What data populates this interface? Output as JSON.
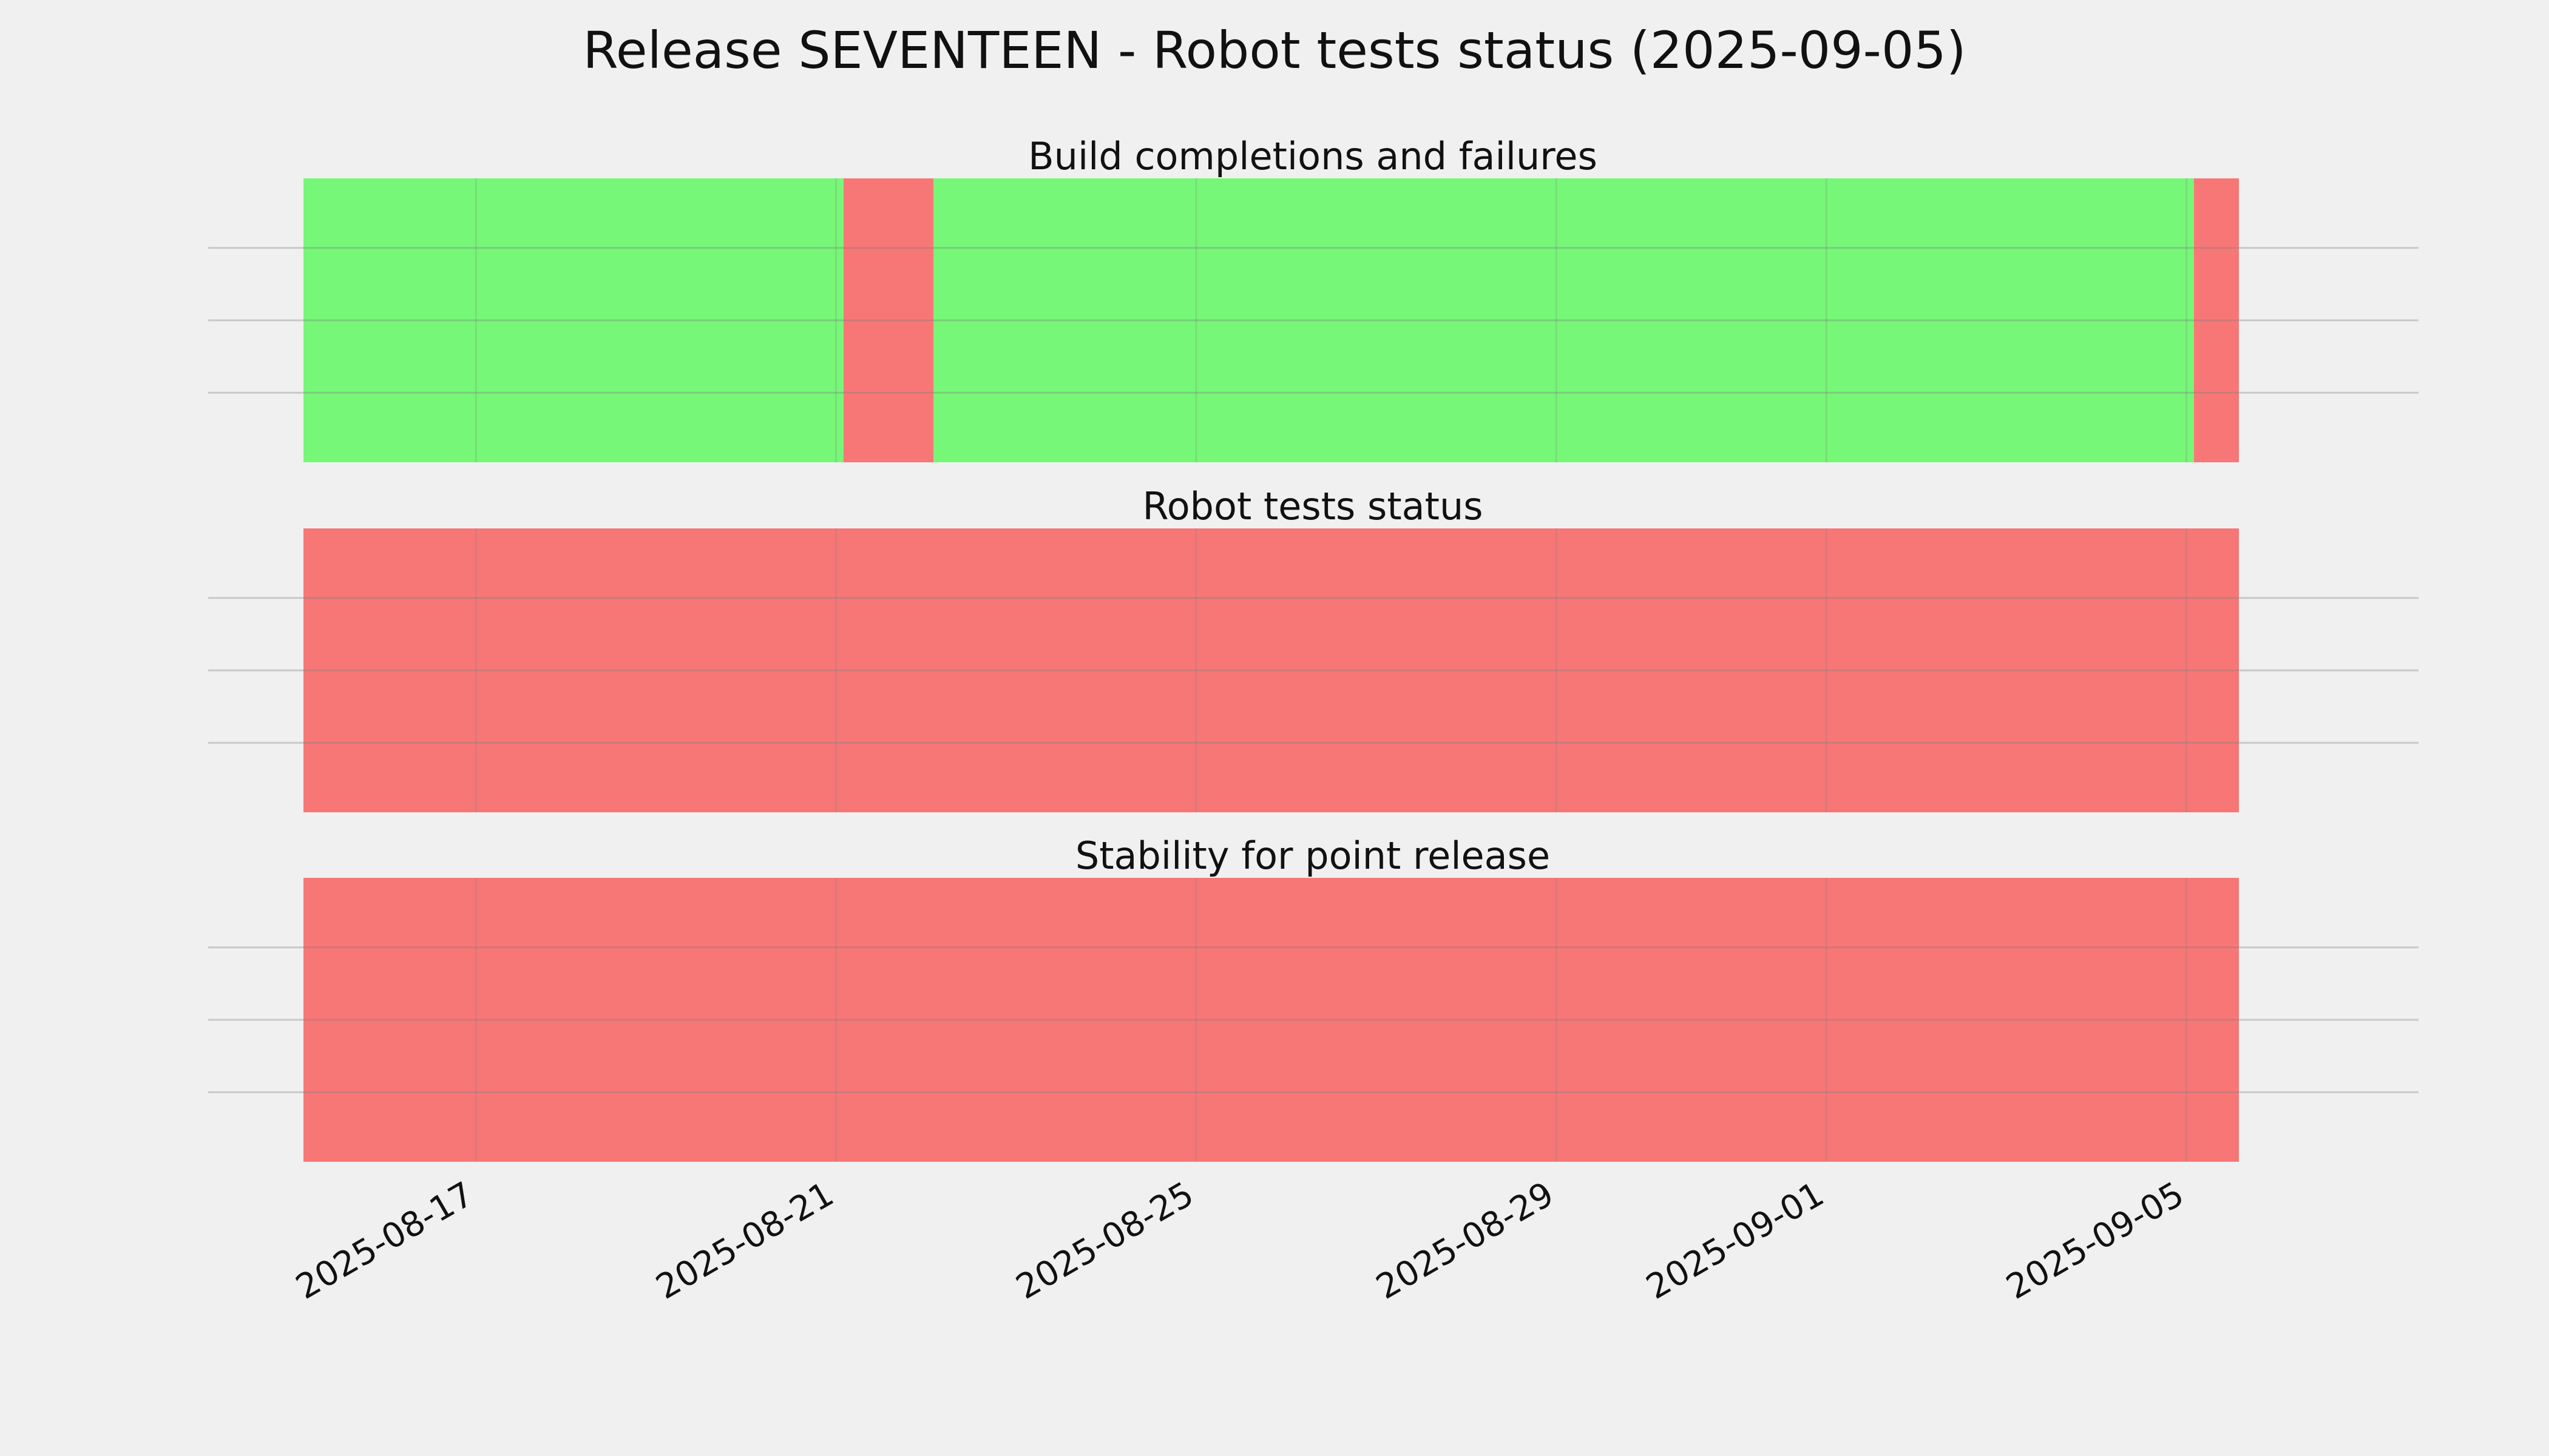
{
  "chart_data": {
    "type": "timeline",
    "title": "Release SEVENTEEN - Robot tests status (2025-09-05)",
    "x_range": [
      "2015-08-15 02:00",
      "2025-09-06 12:00"
    ],
    "x_ticks": [
      "2025-08-17",
      "2025-08-21",
      "2025-08-25",
      "2025-08-29",
      "2025-09-01",
      "2025-09-05"
    ],
    "grid": true,
    "colors": {
      "pass": "#77f777",
      "fail": "#f77777",
      "background": "#f0f0f0",
      "grid": "#cfcfcf"
    },
    "panels": [
      {
        "title": "Build completions and failures",
        "segments": [
          {
            "start": "2025-08-15 02:00",
            "end": "2025-08-21 02:00",
            "status": "pass"
          },
          {
            "start": "2025-08-21 02:00",
            "end": "2025-08-22 02:00",
            "status": "fail"
          },
          {
            "start": "2025-08-22 02:00",
            "end": "2025-09-05 02:00",
            "status": "pass"
          },
          {
            "start": "2025-09-05 02:00",
            "end": "2025-09-05 14:00",
            "status": "fail"
          }
        ]
      },
      {
        "title": "Robot tests status",
        "segments": [
          {
            "start": "2025-08-15 02:00",
            "end": "2025-09-05 14:00",
            "status": "fail"
          }
        ]
      },
      {
        "title": "Stability for point release",
        "segments": [
          {
            "start": "2025-08-15 02:00",
            "end": "2025-09-05 14:00",
            "status": "fail"
          }
        ]
      }
    ]
  }
}
